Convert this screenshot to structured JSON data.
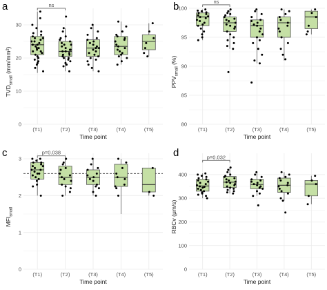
{
  "style": {
    "box_fill": "#c5e0a5",
    "box_stroke": "#555555",
    "grid": "#ebebeb",
    "point": "#000000",
    "text": "#4d4d4d"
  },
  "panels": [
    {
      "letter": "a",
      "xlabel": "Time point",
      "ylabel_main": "TVD",
      "ylabel_sub": "small",
      "ylabel_tail": " (mm/mm²)",
      "ylim": [
        0,
        35
      ],
      "yticks": [
        0,
        10,
        20,
        30
      ],
      "categories": [
        "(T1)",
        "(T2)",
        "(T3)",
        "(T4)",
        "(T5)"
      ],
      "boxes": [
        {
          "min": 15.5,
          "q1": 21,
          "median": 24,
          "q3": 26.5,
          "max": 34
        },
        {
          "min": 16,
          "q1": 20.5,
          "median": 22,
          "q3": 25,
          "max": 29
        },
        {
          "min": 16,
          "q1": 20.5,
          "median": 23,
          "q3": 25.5,
          "max": 30
        },
        {
          "min": 18,
          "q1": 21,
          "median": 23.5,
          "q3": 26.5,
          "max": 31
        },
        {
          "min": 20.5,
          "q1": 22.5,
          "median": 25,
          "q3": 27,
          "max": 30.5
        }
      ],
      "points": [
        [
          32,
          30,
          29,
          28,
          27.5,
          27,
          26.5,
          26,
          26,
          25.5,
          25,
          25,
          24.5,
          24,
          24,
          23.5,
          23,
          23,
          22.5,
          22,
          22,
          21.5,
          21,
          20.5,
          20,
          19.5,
          19,
          18.5,
          18,
          17,
          16,
          34
        ],
        [
          32.5,
          29,
          28,
          26.5,
          26,
          25.5,
          25,
          24.5,
          24,
          24,
          23.5,
          23,
          22.5,
          22.5,
          22,
          22,
          21.5,
          21,
          21,
          20.5,
          20,
          20,
          19.5,
          19,
          18.5,
          18,
          17.5,
          16
        ],
        [
          30,
          29,
          28,
          27,
          26,
          25.5,
          25,
          24.5,
          24,
          23.5,
          23,
          23,
          22.5,
          22,
          21.5,
          21,
          20.5,
          20,
          19.5,
          19,
          18,
          17,
          16
        ],
        [
          31,
          29.5,
          28,
          27,
          26.5,
          26,
          25.5,
          25,
          24,
          23.5,
          23,
          22.5,
          22,
          21.5,
          21,
          20.5,
          20,
          19,
          18
        ],
        [
          30.5,
          28,
          26,
          24.5,
          23,
          21.5,
          20.5
        ]
      ],
      "bracket": {
        "from": 0,
        "to": 1,
        "y": 35,
        "label": "ns"
      },
      "ref_line": null
    },
    {
      "letter": "b",
      "xlabel": "Time point",
      "ylabel_main": "PPV",
      "ylabel_sub": "small",
      "ylabel_tail": " (%)",
      "ylim": [
        80,
        100
      ],
      "yticks": [
        80,
        85,
        90,
        95,
        100
      ],
      "categories": [
        "(T1)",
        "(T2)",
        "(T3)",
        "(T4)",
        "(T5)"
      ],
      "boxes": [
        {
          "min": 94.5,
          "q1": 97,
          "median": 98.5,
          "q3": 99.2,
          "max": 99.8
        },
        {
          "min": 93,
          "q1": 96,
          "median": 97.5,
          "q3": 98.5,
          "max": 99.8
        },
        {
          "min": 90.5,
          "q1": 95,
          "median": 97,
          "q3": 98,
          "max": 99.8
        },
        {
          "min": 91,
          "q1": 95,
          "median": 97.5,
          "q3": 98.5,
          "max": 99.8
        },
        {
          "min": 95.5,
          "q1": 96.5,
          "median": 98.5,
          "q3": 99.5,
          "max": 99.8
        }
      ],
      "points": [
        [
          99.8,
          99.6,
          99.5,
          99.3,
          99.2,
          99,
          98.8,
          98.6,
          98.5,
          98.3,
          98,
          97.8,
          97.5,
          97.2,
          97,
          96.5,
          96,
          95.5,
          95,
          94.5
        ],
        [
          99.8,
          99.5,
          99.2,
          99,
          98.8,
          98.5,
          98.2,
          98,
          97.8,
          97.5,
          97.2,
          97,
          96.8,
          96.5,
          96,
          95.5,
          95,
          94.5,
          94,
          93.5,
          93,
          89
        ],
        [
          99.8,
          99.5,
          99,
          98.5,
          98,
          97.8,
          97.5,
          97.2,
          97,
          96.5,
          96,
          95.5,
          95,
          94.5,
          94,
          93,
          92,
          91,
          90.5,
          87.2
        ],
        [
          99.8,
          99.5,
          99,
          98.5,
          98,
          97.5,
          97,
          96.5,
          96,
          95,
          94,
          93,
          92,
          91.2
        ],
        [
          99.8,
          99.2,
          98.5,
          97,
          96,
          95.5
        ]
      ],
      "bracket": {
        "from": 0,
        "to": 1,
        "y": 100.6,
        "label": "ns"
      },
      "ref_line": null
    },
    {
      "letter": "c",
      "xlabel": "Time point",
      "ylabel_main": "MFI",
      "ylabel_sub": "small",
      "ylabel_tail": "",
      "ylim": [
        0,
        3.15
      ],
      "yticks": [
        0,
        1,
        2,
        3
      ],
      "categories": [
        "(T1)",
        "(T2)",
        "(T3)",
        "(T4)",
        "(T5)"
      ],
      "boxes": [
        {
          "min": 2.0,
          "q1": 2.45,
          "median": 2.7,
          "q3": 2.9,
          "max": 3.0
        },
        {
          "min": 2.0,
          "q1": 2.3,
          "median": 2.5,
          "q3": 2.8,
          "max": 3.0
        },
        {
          "min": 2.0,
          "q1": 2.3,
          "median": 2.5,
          "q3": 2.7,
          "max": 3.0
        },
        {
          "min": 1.5,
          "q1": 2.25,
          "median": 2.5,
          "q3": 2.85,
          "max": 3.0
        },
        {
          "min": 2.0,
          "q1": 2.1,
          "median": 2.3,
          "q3": 2.75,
          "max": 2.75
        }
      ],
      "points": [
        [
          3.0,
          3.0,
          2.95,
          2.9,
          2.9,
          2.85,
          2.8,
          2.8,
          2.75,
          2.7,
          2.7,
          2.65,
          2.6,
          2.6,
          2.55,
          2.5,
          2.45,
          2.4,
          2.3,
          2.25,
          2.0
        ],
        [
          3.0,
          2.9,
          2.85,
          2.75,
          2.7,
          2.6,
          2.55,
          2.5,
          2.45,
          2.4,
          2.3,
          2.25,
          2.2,
          2.1,
          2.0
        ],
        [
          3.0,
          2.85,
          2.75,
          2.7,
          2.6,
          2.55,
          2.5,
          2.45,
          2.4,
          2.3,
          2.25,
          2.2,
          2.1,
          2.0
        ],
        [
          3.0,
          2.9,
          2.75,
          2.6,
          2.5,
          2.45,
          2.3,
          2.25,
          2.2,
          2.0
        ],
        [
          2.75,
          2.1,
          2.0
        ]
      ],
      "bracket": {
        "from": 0,
        "to": 1,
        "y": 3.08,
        "label": "p=0.038"
      },
      "ref_line": 2.6
    },
    {
      "letter": "d",
      "xlabel": "Time point",
      "ylabel_main": "RBCv",
      "ylabel_sub": "",
      "ylabel_tail": " (μm/s)",
      "ylim": [
        0,
        490
      ],
      "yticks": [
        0,
        100,
        200,
        300,
        400
      ],
      "categories": [
        "(T1)",
        "(T2)",
        "(T3)",
        "(T4)",
        "(T5)"
      ],
      "boxes": [
        {
          "min": 300,
          "q1": 330,
          "median": 352,
          "q3": 380,
          "max": 405
        },
        {
          "min": 320,
          "q1": 345,
          "median": 368,
          "q3": 392,
          "max": 430
        },
        {
          "min": 310,
          "q1": 340,
          "median": 358,
          "q3": 380,
          "max": 410
        },
        {
          "min": 290,
          "q1": 325,
          "median": 355,
          "q3": 385,
          "max": 410
        },
        {
          "min": 275,
          "q1": 310,
          "median": 360,
          "q3": 375,
          "max": 395
        }
      ],
      "points": [
        [
          405,
          400,
          395,
          390,
          385,
          380,
          375,
          370,
          365,
          360,
          355,
          350,
          348,
          345,
          340,
          335,
          330,
          325,
          320,
          315,
          310,
          300
        ],
        [
          430,
          420,
          410,
          400,
          395,
          390,
          385,
          380,
          375,
          370,
          368,
          365,
          360,
          355,
          350,
          345,
          340,
          335,
          330,
          325,
          320
        ],
        [
          410,
          400,
          390,
          380,
          375,
          370,
          365,
          360,
          355,
          350,
          345,
          340,
          330,
          320,
          310,
          270
        ],
        [
          410,
          400,
          390,
          385,
          375,
          365,
          355,
          350,
          340,
          330,
          320,
          300,
          290,
          240
        ],
        [
          395,
          375,
          360,
          310,
          275
        ]
      ],
      "bracket": {
        "from": 0,
        "to": 1,
        "y": 460,
        "label": "p=0.032"
      },
      "ref_line": null
    }
  ]
}
